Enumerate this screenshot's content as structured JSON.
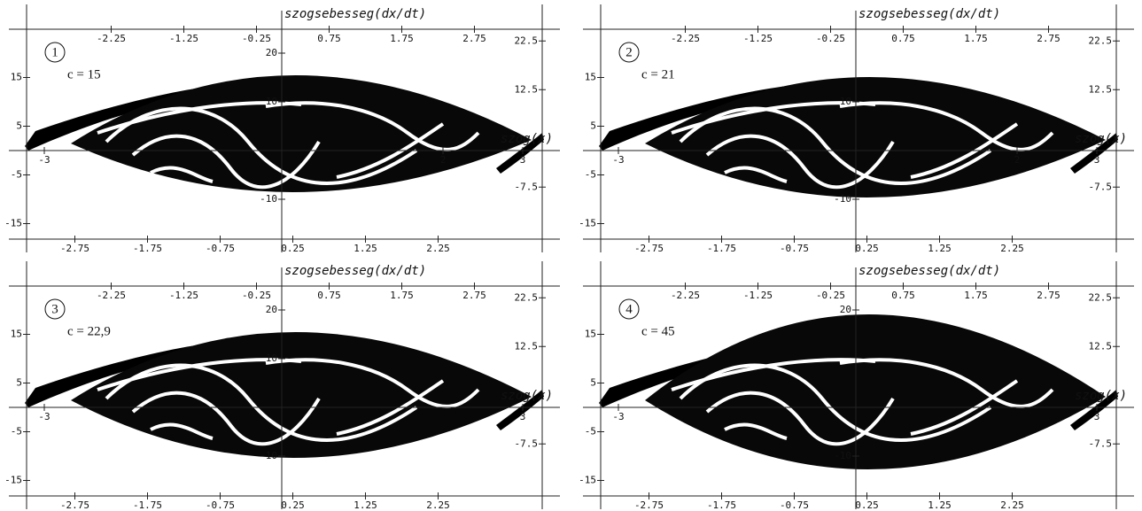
{
  "chart_data": [
    {
      "type": "phase-portrait",
      "badge": "1",
      "param": "c = 15",
      "y_label": "szogsebesseg(dx/dt)",
      "x_label": "szog(x)",
      "top_ticks": [
        -2.25,
        -1.25,
        -0.25,
        0.75,
        1.75,
        2.75
      ],
      "bottom_ticks": [
        -2.75,
        -1.75,
        -0.75,
        0.25,
        1.25,
        2.25
      ],
      "mid_xticks": [
        -3,
        2,
        3
      ],
      "left_yticks": [
        15,
        5,
        -5,
        -15
      ],
      "center_yticks": [
        20,
        10,
        -10
      ],
      "right_yticks": [
        22.5,
        12.5,
        -7.5
      ]
    },
    {
      "type": "phase-portrait",
      "badge": "2",
      "param": "c = 21",
      "y_label": "szogsebesseg(dx/dt)",
      "x_label": "szog(x)",
      "top_ticks": [
        -2.25,
        -1.25,
        -0.25,
        0.75,
        1.75,
        2.75
      ],
      "bottom_ticks": [
        -2.75,
        -1.75,
        -0.75,
        0.25,
        1.25,
        2.25
      ],
      "mid_xticks": [
        -3,
        2,
        3
      ],
      "left_yticks": [
        15,
        5,
        -5,
        -15
      ],
      "center_yticks": [
        10,
        -10
      ],
      "right_yticks": [
        22.5,
        12.5,
        -7.5
      ]
    },
    {
      "type": "phase-portrait",
      "badge": "3",
      "param": "c = 22,9",
      "y_label": "szogsebesseg(dx/dt)",
      "x_label": "szog(x)",
      "top_ticks": [
        -2.25,
        -1.25,
        -0.25,
        0.75,
        1.75,
        2.75
      ],
      "bottom_ticks": [
        -2.75,
        -1.75,
        -0.75,
        0.25,
        1.25,
        2.25
      ],
      "mid_xticks": [
        -3,
        3
      ],
      "left_yticks": [
        15,
        5,
        -5,
        -15
      ],
      "center_yticks": [
        20,
        10,
        -10
      ],
      "right_yticks": [
        22.5,
        12.5,
        -7.5
      ]
    },
    {
      "type": "phase-portrait",
      "badge": "4",
      "param": "c = 45",
      "y_label": "szogsebesseg(dx/dt)",
      "x_label": "szog(x)",
      "top_ticks": [
        -2.25,
        -1.25,
        -0.25,
        0.75,
        1.75,
        2.75
      ],
      "bottom_ticks": [
        -2.75,
        -1.75,
        -0.75,
        0.25,
        1.25,
        2.25
      ],
      "mid_xticks": [
        -3,
        3
      ],
      "left_yticks": [
        15,
        5,
        -5,
        -15
      ],
      "center_yticks": [
        20,
        -10
      ],
      "right_yticks": [
        22.5,
        12.5,
        -7.5
      ]
    }
  ]
}
